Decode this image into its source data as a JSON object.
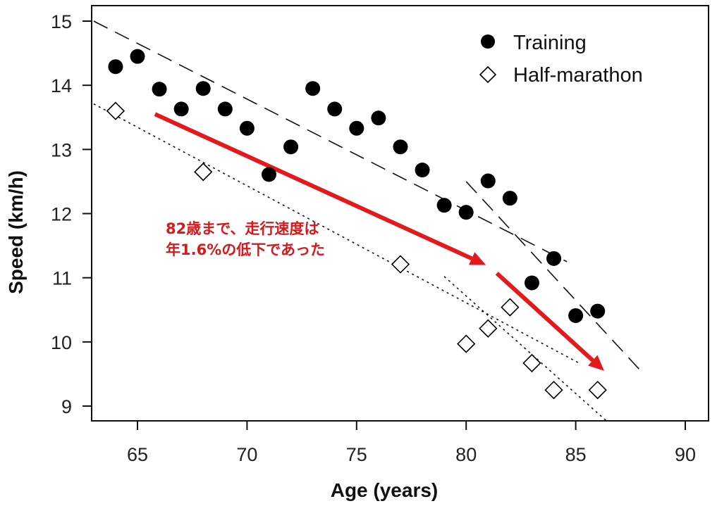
{
  "chart_data": {
    "type": "scatter",
    "xlabel": "Age (years)",
    "ylabel": "Speed (km/h)",
    "xlim": [
      63,
      91
    ],
    "ylim": [
      8.8,
      15.25
    ],
    "xticks": [
      65,
      70,
      75,
      80,
      85,
      90
    ],
    "yticks": [
      9,
      10,
      11,
      12,
      13,
      14,
      15
    ],
    "grid": false,
    "legend_position": "top-right",
    "series": [
      {
        "name": "Training",
        "marker": "filled-circle",
        "x": [
          64,
          65,
          66,
          67,
          68,
          69,
          70,
          71,
          72,
          73,
          74,
          75,
          76,
          77,
          78,
          79,
          80,
          81,
          82,
          83,
          84,
          85,
          86
        ],
        "y": [
          14.29,
          14.45,
          13.94,
          13.63,
          13.95,
          13.63,
          13.33,
          12.61,
          13.04,
          13.95,
          13.63,
          13.33,
          13.49,
          13.04,
          12.68,
          12.13,
          12.02,
          12.51,
          12.24,
          10.92,
          11.3,
          10.41,
          10.48
        ]
      },
      {
        "name": "Half-marathon",
        "marker": "open-diamond",
        "x": [
          64,
          68,
          77,
          80,
          81,
          82,
          83,
          84,
          86
        ],
        "y": [
          13.6,
          12.65,
          11.21,
          9.97,
          10.21,
          10.54,
          9.67,
          9.25,
          9.25
        ]
      }
    ],
    "fit_lines": [
      {
        "series": "Training",
        "style": "dashed",
        "x": [
          63,
          84.6
        ],
        "y": [
          15.0,
          11.25
        ]
      },
      {
        "series": "Training",
        "style": "dashed",
        "x": [
          80.0,
          88.1
        ],
        "y": [
          12.5,
          9.5
        ]
      },
      {
        "series": "Half-marathon",
        "style": "dotted",
        "x": [
          63,
          85.1
        ],
        "y": [
          13.71,
          9.68
        ]
      },
      {
        "series": "Half-marathon",
        "style": "dotted",
        "x": [
          79.0,
          86.4
        ],
        "y": [
          11.02,
          8.77
        ]
      }
    ],
    "arrows": [
      {
        "color": "#e3191c",
        "x": [
          65.8,
          80.9
        ],
        "y": [
          13.55,
          11.2
        ]
      },
      {
        "color": "#e3191c",
        "x": [
          81.4,
          86.3
        ],
        "y": [
          11.07,
          9.55
        ]
      }
    ],
    "annotation": {
      "lines": [
        "82歳まで、走行速度は",
        "年1.6%の低下であった"
      ],
      "color": "#d7191c"
    }
  }
}
